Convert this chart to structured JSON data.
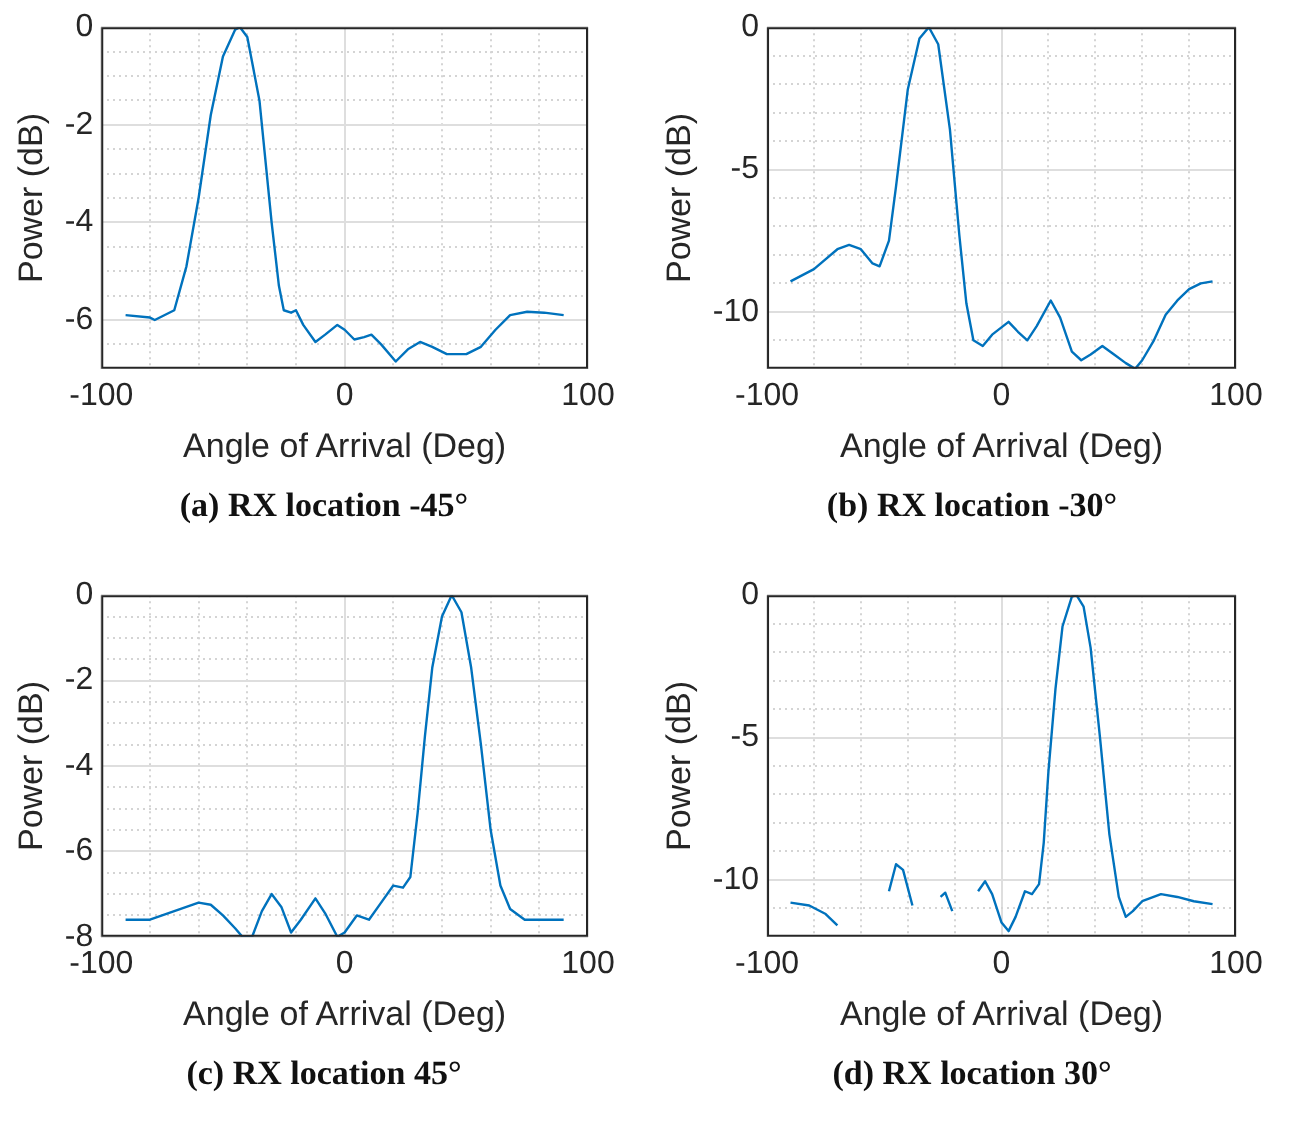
{
  "chart_data": [
    {
      "type": "line",
      "title": "(a) RX location -45°",
      "xlabel": "Angle of Arrival (Deg)",
      "ylabel": "Power (dB)",
      "grid": true,
      "x": [
        -90,
        -80,
        -78,
        -70,
        -65,
        -60,
        -55,
        -50,
        -45,
        -43,
        -40,
        -35,
        -30,
        -27,
        -25,
        -22,
        -20,
        -17,
        -12,
        -8,
        -3,
        0,
        4,
        8,
        11,
        15,
        21,
        26,
        31,
        36,
        42,
        50,
        56,
        62,
        68,
        75,
        82,
        90
      ],
      "series": [
        {
          "color": "#0072bd",
          "values": [
            -5.9,
            -5.95,
            -6.0,
            -5.8,
            -4.9,
            -3.5,
            -1.8,
            -0.6,
            -0.05,
            0,
            -0.2,
            -1.5,
            -4.0,
            -5.3,
            -5.8,
            -5.85,
            -5.8,
            -6.1,
            -6.45,
            -6.3,
            -6.1,
            -6.2,
            -6.4,
            -6.35,
            -6.3,
            -6.5,
            -6.85,
            -6.6,
            -6.45,
            -6.55,
            -6.7,
            -6.7,
            -6.55,
            -6.2,
            -5.9,
            -5.83,
            -5.85,
            -5.9
          ]
        }
      ],
      "xlim": [
        -100,
        100
      ],
      "ylim": [
        -7,
        0
      ],
      "xticks": [
        -100,
        {
          "value": -80,
          "label": null
        },
        {
          "value": -60,
          "label": null
        },
        {
          "value": -40,
          "label": null
        },
        {
          "value": -20,
          "label": null
        },
        0,
        {
          "value": 20,
          "label": null
        },
        {
          "value": 40,
          "label": null
        },
        {
          "value": 60,
          "label": null
        },
        {
          "value": 80,
          "label": null
        },
        100
      ],
      "yticks": [
        -6,
        {
          "value": -6.5,
          "label": null
        },
        {
          "value": -5.5,
          "label": null
        },
        {
          "value": -5,
          "label": null
        },
        {
          "value": -4.5,
          "label": null
        },
        -4,
        {
          "value": -3.5,
          "label": null
        },
        {
          "value": -3,
          "label": null
        },
        {
          "value": -2.5,
          "label": null
        },
        -2,
        {
          "value": -1.5,
          "label": null
        },
        {
          "value": -1,
          "label": null
        },
        {
          "value": -0.5,
          "label": null
        },
        0
      ]
    },
    {
      "type": "line",
      "title": "(b) RX location -30°",
      "xlabel": "Angle of Arrival (Deg)",
      "ylabel": "Power (dB)",
      "grid": true,
      "x": [
        -90,
        -80,
        -70,
        -65,
        -60,
        -55,
        -52,
        -48,
        -45,
        -40,
        -35,
        -31,
        -27,
        -22,
        -18,
        -15,
        -12,
        -8,
        -4,
        3,
        7,
        11,
        15,
        21,
        25,
        30,
        34,
        38,
        43,
        48,
        53,
        57,
        60,
        65,
        70,
        75,
        80,
        85,
        90
      ],
      "series": [
        {
          "color": "#0072bd",
          "values": [
            -8.93,
            -8.5,
            -7.8,
            -7.65,
            -7.8,
            -8.3,
            -8.4,
            -7.5,
            -5.6,
            -2.2,
            -0.4,
            0,
            -0.6,
            -3.6,
            -7.3,
            -9.7,
            -11.0,
            -11.2,
            -10.8,
            -10.35,
            -10.7,
            -11.0,
            -10.5,
            -9.6,
            -10.2,
            -11.4,
            -11.7,
            -11.5,
            -11.2,
            -11.5,
            -11.8,
            -12,
            -11.7,
            -11.0,
            -10.1,
            -9.6,
            -9.2,
            -9.0,
            -8.93
          ]
        }
      ],
      "xlim": [
        -100,
        100
      ],
      "ylim": [
        -12,
        0
      ],
      "xticks": [
        -100,
        {
          "value": -80,
          "label": null
        },
        {
          "value": -60,
          "label": null
        },
        {
          "value": -40,
          "label": null
        },
        {
          "value": -20,
          "label": null
        },
        0,
        {
          "value": 20,
          "label": null
        },
        {
          "value": 40,
          "label": null
        },
        {
          "value": 60,
          "label": null
        },
        {
          "value": 80,
          "label": null
        },
        100
      ],
      "yticks": [
        {
          "value": -11,
          "label": null
        },
        -10,
        {
          "value": -9,
          "label": null
        },
        {
          "value": -8,
          "label": null
        },
        {
          "value": -7,
          "label": null
        },
        {
          "value": -6,
          "label": null
        },
        -5,
        {
          "value": -4,
          "label": null
        },
        {
          "value": -3,
          "label": null
        },
        {
          "value": -2,
          "label": null
        },
        {
          "value": -1,
          "label": null
        },
        0
      ]
    },
    {
      "type": "line",
      "title": "(c) RX location 45°",
      "xlabel": "Angle of Arrival (Deg)",
      "ylabel": "Power (dB)",
      "grid": true,
      "x": [
        -90,
        -80,
        -70,
        -60,
        -55,
        -50,
        -45,
        -42,
        -38,
        -34,
        -30,
        -26,
        -22,
        -18,
        -12,
        -8,
        -3,
        0,
        5,
        10,
        15,
        20,
        24,
        27,
        30,
        33,
        36,
        40,
        44,
        48,
        52,
        56,
        60,
        64,
        68,
        74,
        80,
        90
      ],
      "series": [
        {
          "color": "#0072bd",
          "values": [
            -7.6,
            -7.6,
            -7.4,
            -7.2,
            -7.25,
            -7.5,
            -7.8,
            -8,
            -8,
            -7.4,
            -7.0,
            -7.3,
            -7.9,
            -7.6,
            -7.1,
            -7.45,
            -8,
            -7.9,
            -7.5,
            -7.6,
            -7.2,
            -6.8,
            -6.85,
            -6.6,
            -5.1,
            -3.3,
            -1.7,
            -0.5,
            0,
            -0.4,
            -1.7,
            -3.5,
            -5.5,
            -6.8,
            -7.35,
            -7.6,
            -7.6,
            -7.6
          ]
        }
      ],
      "xlim": [
        -100,
        100
      ],
      "ylim": [
        -8,
        0
      ],
      "xticks": [
        -100,
        {
          "value": -80,
          "label": null
        },
        {
          "value": -60,
          "label": null
        },
        {
          "value": -40,
          "label": null
        },
        {
          "value": -20,
          "label": null
        },
        0,
        {
          "value": 20,
          "label": null
        },
        {
          "value": 40,
          "label": null
        },
        {
          "value": 60,
          "label": null
        },
        {
          "value": 80,
          "label": null
        },
        100
      ],
      "yticks": [
        -8,
        {
          "value": -7.5,
          "label": null
        },
        {
          "value": -7,
          "label": null
        },
        {
          "value": -6.5,
          "label": null
        },
        -6,
        {
          "value": -5.5,
          "label": null
        },
        {
          "value": -5,
          "label": null
        },
        {
          "value": -4.5,
          "label": null
        },
        -4,
        {
          "value": -3.5,
          "label": null
        },
        {
          "value": -3,
          "label": null
        },
        {
          "value": -2.5,
          "label": null
        },
        -2,
        {
          "value": -1.5,
          "label": null
        },
        {
          "value": -1,
          "label": null
        },
        {
          "value": -0.5,
          "label": null
        },
        0
      ]
    },
    {
      "type": "line",
      "title": "(d) RX location 30°",
      "xlabel": "Angle of Arrival (Deg)",
      "ylabel": "Power (dB)",
      "grid": true,
      "x": [
        -90,
        -82,
        -75,
        -70,
        -66,
        -59,
        -52,
        -48,
        -45,
        -42,
        -38,
        -35,
        -32,
        -30,
        -26,
        -24,
        -21,
        -18,
        -16,
        -14,
        -10,
        -7,
        -4,
        0,
        3,
        6,
        10,
        13,
        16,
        18,
        20,
        23,
        26,
        30,
        32,
        35,
        38,
        42,
        46,
        50,
        53,
        56,
        60,
        68,
        75,
        82,
        90
      ],
      "series": [
        {
          "color": "#0072bd",
          "values": [
            -10.8,
            -10.9,
            -11.2,
            -11.6,
            null,
            null,
            null,
            -10.4,
            -9.45,
            -9.65,
            -10.9,
            null,
            null,
            null,
            -10.6,
            -10.45,
            -11.1,
            null,
            null,
            null,
            -10.4,
            -10.05,
            -10.5,
            -11.5,
            -11.8,
            -11.3,
            -10.4,
            -10.5,
            -10.15,
            -8.7,
            -6.2,
            -3.3,
            -1.1,
            -0.05,
            0,
            -0.4,
            -1.85,
            -5,
            -8.4,
            -10.6,
            -11.3,
            -11.1,
            -10.75,
            -10.5,
            -10.6,
            -10.75,
            -10.85
          ]
        }
      ],
      "xlim": [
        -100,
        100
      ],
      "ylim": [
        -12,
        0
      ],
      "xticks": [
        -100,
        {
          "value": -80,
          "label": null
        },
        {
          "value": -60,
          "label": null
        },
        {
          "value": -40,
          "label": null
        },
        {
          "value": -20,
          "label": null
        },
        0,
        {
          "value": 20,
          "label": null
        },
        {
          "value": 40,
          "label": null
        },
        {
          "value": 60,
          "label": null
        },
        {
          "value": 80,
          "label": null
        },
        100
      ],
      "yticks": [
        {
          "value": -11,
          "label": null
        },
        -10,
        {
          "value": -9,
          "label": null
        },
        {
          "value": -8,
          "label": null
        },
        {
          "value": -7,
          "label": null
        },
        {
          "value": -6,
          "label": null
        },
        -5,
        {
          "value": -4,
          "label": null
        },
        {
          "value": -3,
          "label": null
        },
        {
          "value": -2,
          "label": null
        },
        {
          "value": -1,
          "label": null
        },
        0
      ]
    }
  ]
}
